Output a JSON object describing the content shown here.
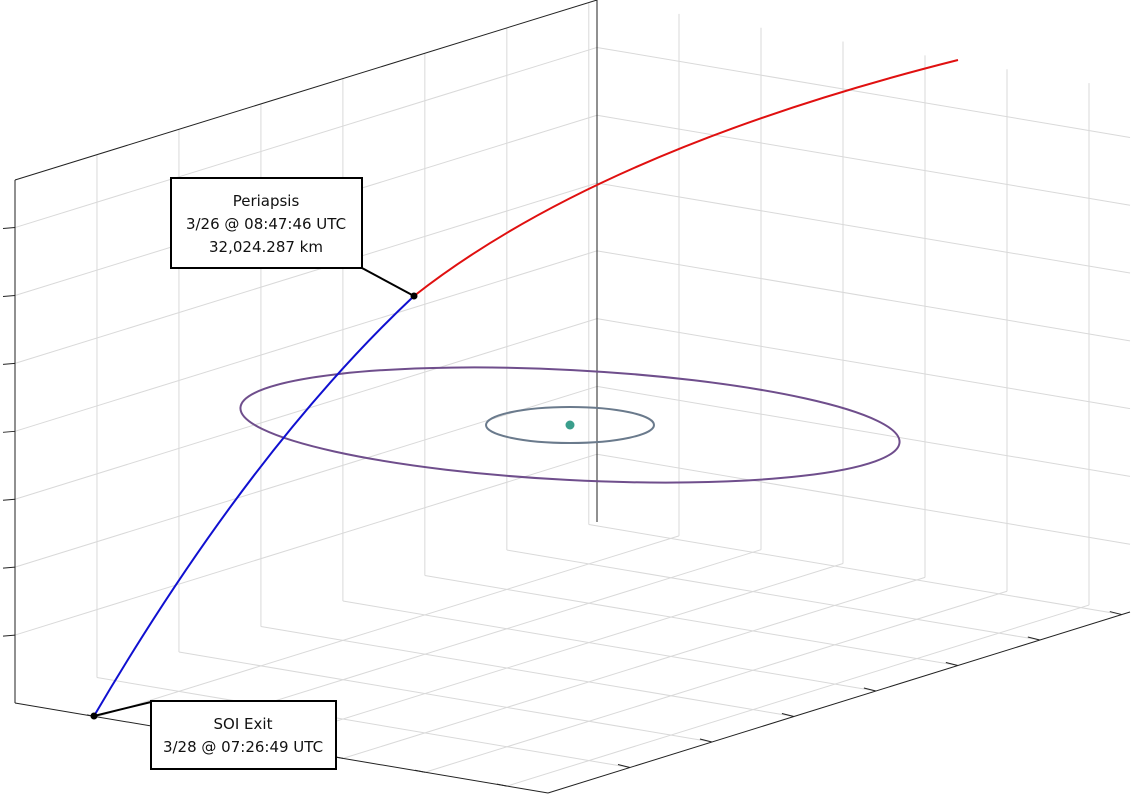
{
  "annotations": [
    {
      "lines": [
        "Periapsis",
        "3/26 @ 08:47:46 UTC",
        "32,024.287 km"
      ]
    },
    {
      "lines": [
        "SOI Exit",
        "3/28 @ 07:26:49 UTC"
      ]
    }
  ]
}
